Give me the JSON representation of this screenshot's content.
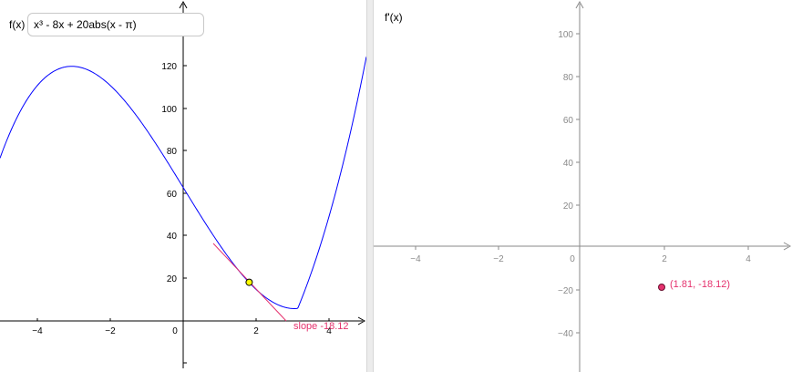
{
  "left_view": {
    "function_label": "f(x)",
    "function_expression": "x³ - 8x + 20abs(x - π)",
    "x_tick_labels": [
      "−4",
      "−2",
      "0",
      "2",
      "4"
    ],
    "y_tick_labels": [
      "20",
      "40",
      "60",
      "80",
      "100",
      "120"
    ],
    "slope_label": "slope -18.12",
    "curve_color": "#0000ff",
    "tangent_color": "#e5326e",
    "point_color": "#ffff00"
  },
  "right_view": {
    "title": "f'(x)",
    "x_tick_labels": [
      "−4",
      "−2",
      "0",
      "2",
      "4"
    ],
    "y_tick_labels": [
      "100",
      "80",
      "60",
      "40",
      "20",
      "−20",
      "−40"
    ],
    "point_label": "(1.81, -18.12)",
    "point_color": "#e5326e"
  }
}
